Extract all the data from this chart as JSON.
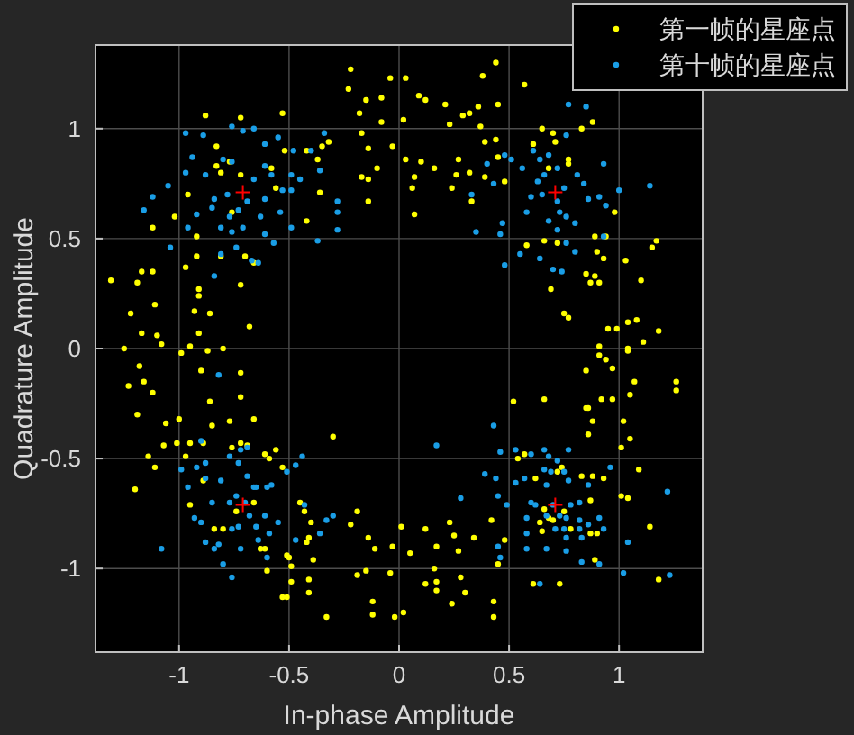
{
  "chart_data": {
    "type": "scatter",
    "xlabel": "In-phase Amplitude",
    "ylabel": "Quadrature Amplitude",
    "xlim": [
      -1.38,
      1.38
    ],
    "ylim": [
      -1.38,
      1.38
    ],
    "xticks": [
      -1,
      -0.5,
      0,
      0.5,
      1
    ],
    "yticks": [
      -1,
      -0.5,
      0,
      0.5,
      1
    ],
    "grid": true,
    "legend": "top right",
    "marker": "circle",
    "series": [
      {
        "name": "第一帧的星座点",
        "color": "#ffff00",
        "x": [
          -0.22,
          -0.04,
          0.03,
          -0.23,
          -0.15,
          -0.08,
          -0.18,
          -0.08,
          0.02,
          -0.88,
          -0.72,
          -0.53,
          -0.83,
          -0.17,
          -0.14,
          -0.03,
          -0.32,
          -0.35,
          -0.52,
          -0.42,
          -0.37,
          -0.83,
          -0.77,
          -0.81,
          -0.72,
          -0.58,
          -0.36,
          -0.17,
          -0.14,
          -0.1,
          0.03,
          0.07,
          -0.14,
          0.07,
          -0.96,
          -1.02,
          -1.12,
          -0.92,
          -0.76,
          -0.56,
          -0.42,
          -1.31,
          -1.19,
          -1.17,
          -1.12,
          -0.97,
          -0.92,
          -0.81,
          -0.7,
          -0.66,
          -1.11,
          -1.22,
          -0.91,
          -0.91,
          -0.93,
          -0.86,
          -0.72,
          -0.68,
          -1.17,
          -1.1,
          -1.08,
          -0.95,
          -0.91,
          -1.25,
          -0.99,
          -0.87,
          -0.8,
          0.44,
          0.38,
          0.57,
          0.36,
          0.45,
          0.37,
          0.65,
          0.7,
          0.83,
          0.88,
          0.71,
          0.44,
          0.39,
          0.45,
          0.61,
          0.77,
          0.77,
          0.68,
          0.48,
          0.39,
          0.98,
          0.94,
          0.89,
          0.58,
          0.66,
          0.72,
          0.9,
          0.93,
          1.03,
          1.15,
          1.17,
          1.1,
          0.85,
          0.89,
          0.87,
          0.91,
          0.69,
          0.75,
          0.77,
          0.95,
          0.99,
          1.04,
          1.08,
          1.18,
          1.11,
          0.91,
          1.04,
          0.09,
          0.12,
          0.21,
          0.29,
          0.32,
          0.23,
          0.1,
          0.16,
          0.27,
          0.26,
          0.32,
          0.24,
          0.06,
          0.33,
          -1.23,
          -1.18,
          -1.16,
          -1.12,
          -1.19,
          -0.9,
          -0.72,
          -0.86,
          -0.72,
          -1.06,
          -1.0,
          -0.85,
          -0.77,
          -0.66,
          -1.07,
          -1.01,
          -0.95,
          -0.89,
          -0.72,
          -0.69,
          -1.14,
          -1.11,
          -0.97,
          -0.76,
          -0.61,
          -0.56,
          -0.59,
          -0.53,
          -0.3,
          -1.2,
          -0.95,
          -0.89,
          -0.84,
          -0.8,
          -0.74,
          -0.66,
          -0.63,
          -0.61,
          -0.6,
          -0.51,
          -0.5,
          -0.49,
          -0.53,
          -0.51,
          -0.49,
          -0.45,
          -0.43,
          -0.4,
          -0.41,
          -0.42,
          -0.39,
          -0.41,
          -0.41,
          -0.33,
          -0.19,
          -0.22,
          -0.14,
          -0.11,
          -0.19,
          -0.15,
          -0.12,
          -0.12,
          -0.02,
          -0.04,
          -0.03,
          0.01,
          0.02,
          0.05,
          0.12,
          0.17,
          0.16,
          0.12,
          0.17,
          0.17,
          0.23,
          0.25,
          0.27,
          0.24,
          0.28,
          0.3,
          0.91,
          1.04,
          0.94,
          0.97,
          0.85,
          1.07,
          1.26,
          1.26,
          0.52,
          0.66,
          0.92,
          0.97,
          1.05,
          0.85,
          0.86,
          0.88,
          1.02,
          0.86,
          1.05,
          1.01,
          0.54,
          0.57,
          0.74,
          0.72,
          1.09,
          0.83,
          0.88,
          0.93,
          0.62,
          1.01,
          1.04,
          0.87,
          0.66,
          0.42,
          0.64,
          0.68,
          0.7,
          0.75,
          0.78,
          0.65,
          0.87,
          0.9,
          1.14,
          0.48,
          0.34,
          0.45,
          0.89,
          0.61,
          0.73,
          1.18,
          0.43,
          0.43
        ],
        "values": [
          1.27,
          1.23,
          1.23,
          1.18,
          1.13,
          1.14,
          1.07,
          1.03,
          1.04,
          1.06,
          1.05,
          1.07,
          0.92,
          0.98,
          0.91,
          0.92,
          0.94,
          0.92,
          0.9,
          0.9,
          0.86,
          0.83,
          0.85,
          0.8,
          0.79,
          0.82,
          0.71,
          0.78,
          0.77,
          0.82,
          0.86,
          0.78,
          0.67,
          0.61,
          0.7,
          0.6,
          0.55,
          0.51,
          0.62,
          0.73,
          0.58,
          0.31,
          0.3,
          0.35,
          0.35,
          0.37,
          0.42,
          0.42,
          0.42,
          0.39,
          0.2,
          0.16,
          0.27,
          0.24,
          0.17,
          0.16,
          0.29,
          0.1,
          0.07,
          0.06,
          0.02,
          0.01,
          0.07,
          0.0,
          -0.02,
          -0.01,
          0.0,
          1.3,
          1.24,
          1.2,
          1.1,
          1.11,
          1.01,
          1.0,
          0.98,
          1.0,
          1.03,
          0.94,
          0.95,
          0.94,
          0.87,
          0.93,
          0.86,
          0.84,
          0.82,
          0.76,
          0.78,
          0.62,
          0.51,
          0.51,
          0.47,
          0.49,
          0.48,
          0.44,
          0.41,
          0.4,
          0.46,
          0.49,
          0.31,
          0.34,
          0.33,
          0.3,
          0.3,
          0.27,
          0.16,
          0.14,
          0.09,
          0.09,
          0.12,
          0.13,
          0.08,
          0.03,
          0.01,
          0.0,
          1.15,
          1.13,
          1.11,
          1.06,
          1.07,
          1.02,
          0.85,
          0.82,
          0.86,
          0.79,
          0.8,
          0.73,
          0.73,
          0.67,
          -0.17,
          -0.08,
          -0.15,
          -0.2,
          -0.3,
          -0.1,
          -0.11,
          -0.24,
          -0.22,
          -0.34,
          -0.32,
          -0.35,
          -0.33,
          -0.32,
          -0.44,
          -0.43,
          -0.43,
          -0.43,
          -0.43,
          -0.44,
          -0.49,
          -0.54,
          -0.49,
          -0.45,
          -0.48,
          -0.46,
          -0.5,
          -0.54,
          -0.4,
          -0.64,
          -0.71,
          -0.6,
          -0.82,
          -0.82,
          -0.74,
          -0.7,
          -0.91,
          -0.91,
          -1.01,
          -0.94,
          -0.95,
          -0.99,
          -1.13,
          -1.13,
          -1.06,
          -0.7,
          -0.74,
          -0.79,
          -0.86,
          -0.88,
          -0.96,
          -1.05,
          -1.11,
          -1.22,
          -0.74,
          -0.8,
          -0.86,
          -0.91,
          -1.03,
          -1.01,
          -1.15,
          -1.21,
          -1.22,
          -1.02,
          -0.9,
          -0.81,
          -1.2,
          -0.93,
          -0.82,
          -0.9,
          -1.0,
          -1.07,
          -1.06,
          -1.1,
          -0.79,
          -0.85,
          -0.92,
          -1.16,
          -1.04,
          -1.11,
          -0.03,
          -0.01,
          -0.05,
          -0.09,
          -0.1,
          -0.15,
          -0.15,
          -0.19,
          -0.24,
          -0.23,
          -0.23,
          -0.23,
          -0.21,
          -0.27,
          -0.27,
          -0.33,
          -0.33,
          -0.39,
          -0.41,
          -0.45,
          -0.5,
          -0.48,
          -0.54,
          -0.56,
          -0.55,
          -0.58,
          -0.58,
          -0.59,
          -0.59,
          -0.67,
          -0.68,
          -0.69,
          -0.73,
          -0.78,
          -0.79,
          -0.77,
          -0.78,
          -0.74,
          -0.82,
          -0.83,
          -0.84,
          -0.84,
          -0.81,
          -0.87,
          -0.86,
          -0.98,
          -0.96,
          -1.07,
          -1.07,
          -1.05,
          -1.15,
          -1.22
        ]
      },
      {
        "name": "第十帧的星座点",
        "color": "#1a9ee6",
        "x": [
          0.77,
          0.85,
          0.76,
          0.48,
          0.51,
          0.4,
          0.56,
          0.61,
          0.64,
          0.68,
          0.81,
          0.84,
          0.93,
          0.43,
          0.63,
          0.66,
          0.72,
          0.33,
          0.6,
          0.65,
          0.75,
          0.86,
          0.91,
          0.94,
          1.0,
          1.14,
          0.72,
          0.73,
          0.76,
          0.58,
          0.68,
          0.8,
          0.72,
          0.47,
          0.35,
          0.46,
          0.64,
          0.7,
          0.74,
          0.55,
          0.48,
          0.76,
          0.8,
          0.93,
          -0.97,
          -0.89,
          -0.76,
          -0.71,
          -0.66,
          -0.61,
          -0.55,
          -0.34,
          -0.48,
          -0.4,
          -0.94,
          -0.8,
          -0.76,
          -0.97,
          -0.88,
          -0.66,
          -0.61,
          -0.58,
          -0.49,
          -0.45,
          -0.36,
          -1.12,
          -1.05,
          -1.16,
          -0.84,
          -0.78,
          -0.69,
          -0.61,
          -0.53,
          -0.49,
          -0.28,
          -0.28,
          -0.92,
          -0.85,
          -0.77,
          -0.73,
          -0.63,
          -0.54,
          -0.96,
          -0.81,
          -0.76,
          -0.71,
          -0.61,
          -0.49,
          -0.28,
          -1.04,
          -0.74,
          -0.57,
          -0.37,
          -0.81,
          -0.67,
          -0.64,
          -0.84,
          -0.82,
          -0.9,
          -0.99,
          -0.96,
          -0.92,
          -0.88,
          -0.88,
          -0.81,
          -0.77,
          -0.73,
          -0.72,
          -0.69,
          -0.85,
          -0.77,
          -0.74,
          -0.7,
          -0.65,
          -0.6,
          -0.58,
          -0.69,
          -0.66,
          -0.93,
          -0.9,
          -0.88,
          -0.82,
          -0.84,
          -0.76,
          -0.73,
          -0.68,
          -0.65,
          -0.61,
          -0.59,
          -0.55,
          -0.64,
          -0.72,
          -0.8,
          -0.76,
          -0.6,
          -1.08,
          -0.51,
          -0.47,
          -0.44,
          -0.43,
          -0.36,
          -0.33,
          -0.3,
          -0.47,
          0.17,
          0.28,
          0.43,
          0.46,
          0.53,
          0.6,
          0.66,
          0.68,
          0.72,
          0.77,
          0.66,
          0.69,
          0.75,
          0.96,
          0.39,
          0.44,
          0.57,
          0.77,
          0.86,
          0.67,
          0.53,
          0.45,
          0.49,
          0.6,
          0.62,
          0.7,
          0.78,
          0.82,
          1.22,
          0.58,
          0.67,
          0.73,
          0.76,
          0.82,
          0.86,
          0.91,
          0.93,
          0.58,
          0.71,
          0.75,
          0.82,
          0.76,
          0.83,
          1.04,
          0.45,
          0.58,
          0.67,
          0.76,
          0.46,
          0.83,
          0.91,
          1.02,
          1.23,
          0.64
        ],
        "values": [
          1.11,
          1.1,
          0.97,
          0.88,
          0.86,
          0.84,
          0.82,
          0.9,
          0.86,
          0.88,
          0.79,
          0.75,
          0.84,
          0.75,
          0.76,
          0.79,
          0.82,
          0.7,
          0.69,
          0.7,
          0.73,
          0.68,
          0.69,
          0.65,
          0.72,
          0.74,
          0.67,
          0.62,
          0.6,
          0.62,
          0.58,
          0.57,
          0.54,
          0.57,
          0.53,
          0.52,
          0.41,
          0.36,
          0.35,
          0.43,
          0.38,
          0.48,
          0.44,
          0.51,
          0.98,
          0.97,
          1.01,
          0.99,
          1.0,
          0.93,
          0.96,
          0.98,
          0.9,
          0.9,
          0.87,
          0.86,
          0.85,
          0.8,
          0.79,
          0.77,
          0.83,
          0.79,
          0.79,
          0.77,
          0.81,
          0.69,
          0.74,
          0.63,
          0.68,
          0.7,
          0.67,
          0.68,
          0.72,
          0.72,
          0.67,
          0.62,
          0.61,
          0.64,
          0.6,
          0.63,
          0.6,
          0.62,
          0.55,
          0.55,
          0.53,
          0.55,
          0.52,
          0.55,
          0.54,
          0.46,
          0.46,
          0.48,
          0.49,
          0.43,
          0.4,
          0.39,
          0.33,
          -0.12,
          -0.42,
          -0.55,
          -0.63,
          -0.54,
          -0.52,
          -0.59,
          -0.6,
          -0.49,
          -0.52,
          -0.46,
          -0.45,
          -0.7,
          -0.7,
          -0.67,
          -0.7,
          -0.63,
          -0.63,
          -0.62,
          -0.58,
          -0.63,
          -0.77,
          -0.79,
          -0.88,
          -0.89,
          -0.91,
          -0.82,
          -0.81,
          -0.76,
          -0.81,
          -0.76,
          -0.84,
          -0.79,
          -0.87,
          -0.91,
          -0.98,
          -1.04,
          -0.95,
          -0.91,
          -0.56,
          -0.53,
          -0.49,
          -0.71,
          -0.84,
          -0.78,
          -0.76,
          -0.87,
          -0.44,
          -0.68,
          -0.35,
          -0.47,
          -0.46,
          -0.48,
          -0.46,
          -0.49,
          -0.51,
          -0.46,
          -0.55,
          -0.56,
          -0.56,
          -0.54,
          -0.57,
          -0.59,
          -0.59,
          -0.6,
          -0.62,
          -0.62,
          -0.61,
          -0.67,
          -0.71,
          -0.7,
          -0.71,
          -0.71,
          -0.71,
          -0.7,
          -0.65,
          -0.77,
          -0.76,
          -0.76,
          -0.77,
          -0.78,
          -0.8,
          -0.77,
          -0.82,
          -0.84,
          -0.82,
          -0.82,
          -0.82,
          -0.86,
          -0.86,
          -0.88,
          -0.9,
          -0.91,
          -0.91,
          -0.92,
          -0.95,
          -0.97,
          -0.98,
          -1.02,
          -1.03,
          -1.07
        ]
      },
      {
        "color": "#ff0000",
        "marker": "cross",
        "x": [
          0.71,
          -0.71,
          -0.71,
          0.71
        ],
        "values": [
          0.71,
          0.71,
          -0.71,
          -0.71
        ]
      }
    ]
  }
}
